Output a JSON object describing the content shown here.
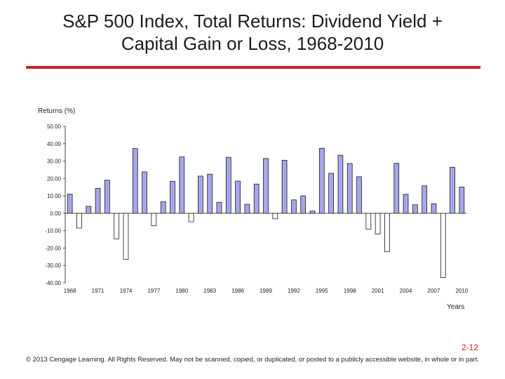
{
  "slide": {
    "title_line1": "S&P 500 Index, Total Returns: Dividend Yield +",
    "title_line2": "Capital Gain or Loss, 1968-2010",
    "page_number": "2-12",
    "copyright": "© 2013 Cengage Learning. All Rights Reserved. May not be scanned, copied, or duplicated, or posted to a publicly accessible website, in whole or in part."
  },
  "colors": {
    "positive_bar": "#a6a6ec",
    "negative_bar": "#ffffff",
    "bar_stroke": "#1a1a1a",
    "accent": "#cc1f2b"
  },
  "chart_data": {
    "type": "bar",
    "title": "S&P 500 Index, Total Returns: Dividend Yield + Capital Gain or Loss, 1968-2010",
    "ylabel": "Returns (%)",
    "xlabel": "Years",
    "ylim": [
      -40,
      50
    ],
    "ytick_values": [
      50,
      40,
      30,
      20,
      10,
      0,
      -10,
      -20,
      -30,
      -40
    ],
    "ytick_labels": [
      "50.00",
      "40.00",
      "30.00",
      "20.00",
      "10.00",
      "0.00",
      "-10.00",
      "-20.00",
      "-30.00",
      "-40.00"
    ],
    "xtick_labels": [
      "1968",
      "1971",
      "1974",
      "1977",
      "1980",
      "1983",
      "1986",
      "1989",
      "1992",
      "1995",
      "1998",
      "2001",
      "2004",
      "2007",
      "2010"
    ],
    "categories": [
      "1968",
      "1969",
      "1970",
      "1971",
      "1972",
      "1973",
      "1974",
      "1975",
      "1976",
      "1977",
      "1978",
      "1979",
      "1980",
      "1981",
      "1982",
      "1983",
      "1984",
      "1985",
      "1986",
      "1987",
      "1988",
      "1989",
      "1990",
      "1991",
      "1992",
      "1993",
      "1994",
      "1995",
      "1996",
      "1997",
      "1998",
      "1999",
      "2000",
      "2001",
      "2002",
      "2003",
      "2004",
      "2005",
      "2006",
      "2007",
      "2008",
      "2009",
      "2010"
    ],
    "values": [
      11.0,
      -8.5,
      4.0,
      14.3,
      19.0,
      -14.7,
      -26.5,
      37.2,
      23.8,
      -7.2,
      6.6,
      18.4,
      32.4,
      -4.9,
      21.4,
      22.5,
      6.3,
      32.2,
      18.5,
      5.2,
      16.8,
      31.5,
      -3.2,
      30.5,
      7.7,
      10.0,
      1.3,
      37.4,
      23.0,
      33.4,
      28.6,
      21.0,
      -9.1,
      -11.9,
      -22.1,
      28.7,
      10.9,
      4.9,
      15.8,
      5.5,
      -37.0,
      26.5,
      15.1
    ],
    "grid": false
  }
}
